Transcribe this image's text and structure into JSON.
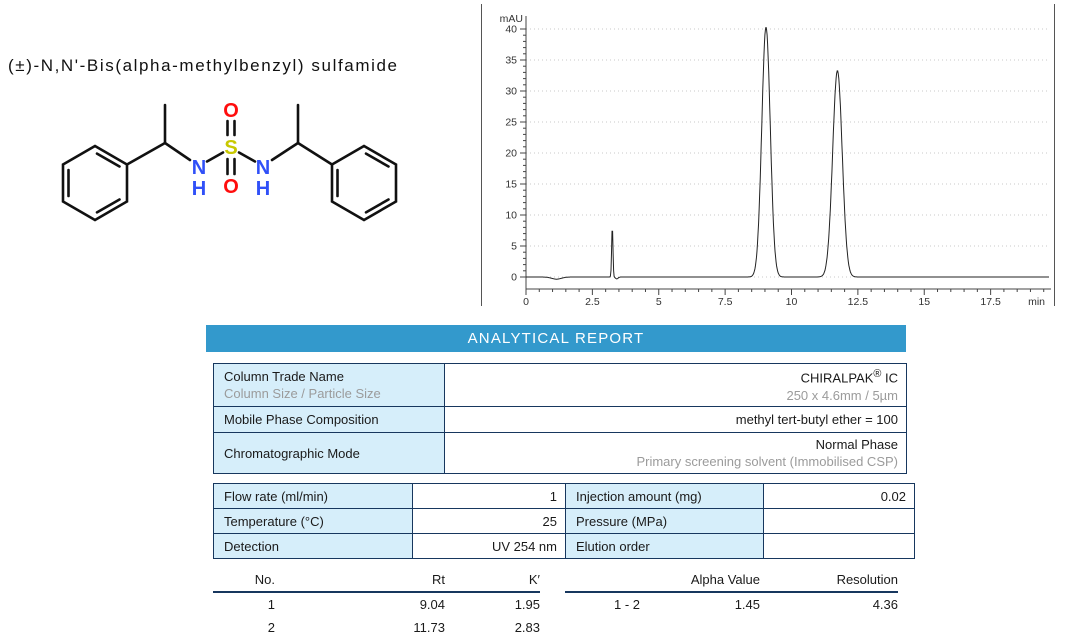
{
  "compound": {
    "title": "(±)-N,N'-Bis(alpha-methylbenzyl) sulfamide",
    "atom_labels": {
      "o_top": "O",
      "o_bottom": "O",
      "s": "S",
      "n_left": "N",
      "h_left": "H",
      "n_right": "N",
      "h_right": "H"
    }
  },
  "chart_data": {
    "type": "line",
    "title": "HPLC chromatogram",
    "x_axis": {
      "unit": "min",
      "range": [
        0,
        19.7
      ],
      "ticks": [
        0,
        2.5,
        5,
        7.5,
        10,
        12.5,
        15,
        17.5
      ],
      "tick_labels": [
        "0",
        "2.5",
        "5",
        "7.5",
        "10",
        "12.5",
        "15",
        "17.5"
      ],
      "minor_step": 0.5
    },
    "y_axis": {
      "unit": "mAU",
      "range": [
        -2,
        43
      ],
      "ticks": [
        0,
        5,
        10,
        15,
        20,
        25,
        30,
        35,
        40
      ],
      "tick_labels": [
        "0",
        "5",
        "10",
        "15",
        "20",
        "25",
        "30",
        "35",
        "40"
      ],
      "minor_step": 1
    },
    "grid": "horizontal-dotted",
    "peaks": [
      {
        "rt": 3.25,
        "height": 8.0,
        "sigma": 0.025
      },
      {
        "rt": 9.04,
        "height": 40.3,
        "sigma": 0.16
      },
      {
        "rt": 11.73,
        "height": 33.3,
        "sigma": 0.18
      }
    ],
    "baseline_dips": [
      {
        "t": 1.15,
        "depth": 0.35,
        "sigma": 0.18
      },
      {
        "t": 3.42,
        "depth": 0.3,
        "sigma": 0.05
      }
    ]
  },
  "report": {
    "header": "ANALYTICAL REPORT",
    "table1": {
      "rows": [
        {
          "label": "Column Trade Name",
          "label_sub": "Column Size / Particle Size",
          "value": "CHIRALPAK",
          "value_sup": "®",
          "value_suffix": " IC",
          "value_sub": "250 x 4.6mm / 5µm"
        },
        {
          "label": "Mobile Phase Composition",
          "value": "methyl tert-butyl ether = 100"
        },
        {
          "label": "Chromatographic Mode",
          "value": "Normal Phase",
          "value_sub": "Primary screening solvent (Immobilised CSP)"
        }
      ]
    },
    "table2": {
      "cells": [
        {
          "label": "Flow rate (ml/min)",
          "value": "1"
        },
        {
          "label": "Injection amount (mg)",
          "value": "0.02"
        },
        {
          "label": "Temperature (°C)",
          "value": "25"
        },
        {
          "label": "Pressure (MPa)",
          "value": ""
        },
        {
          "label": "Detection",
          "value": "UV 254 nm"
        },
        {
          "label": "Elution order",
          "value": ""
        }
      ]
    },
    "results": {
      "left": {
        "headers": [
          "No.",
          "Rt",
          "K′"
        ],
        "rows": [
          [
            "1",
            "9.04",
            "1.95"
          ],
          [
            "2",
            "11.73",
            "2.83"
          ]
        ]
      },
      "right": {
        "headers": [
          "",
          "Alpha Value",
          "Resolution"
        ],
        "rows": [
          [
            "1 - 2",
            "1.45",
            "4.36"
          ]
        ]
      }
    }
  },
  "colors": {
    "band": "#3399CC",
    "cell_blue": "#D6EEFA",
    "border_navy": "#17375E",
    "muted": "#9B9B9B",
    "nitrogen": "#3050F8",
    "oxygen": "#FF0D0D",
    "sulfur": "#C8C800"
  }
}
